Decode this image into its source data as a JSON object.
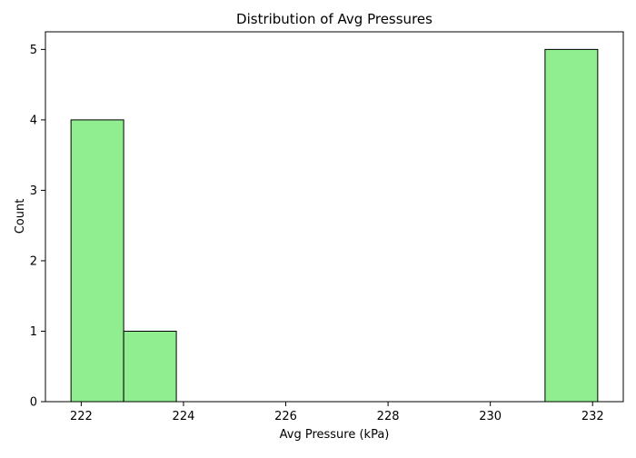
{
  "chart_data": {
    "type": "bar",
    "title": "Distribution of Avg Pressures",
    "xlabel": "Avg Pressure (kPa)",
    "ylabel": "Count",
    "bins": [
      {
        "start": 221.8,
        "end": 222.83,
        "count": 4
      },
      {
        "start": 222.83,
        "end": 223.86,
        "count": 1
      },
      {
        "start": 223.86,
        "end": 224.89,
        "count": 0
      },
      {
        "start": 224.89,
        "end": 225.92,
        "count": 0
      },
      {
        "start": 225.92,
        "end": 226.95,
        "count": 0
      },
      {
        "start": 226.95,
        "end": 227.98,
        "count": 0
      },
      {
        "start": 227.98,
        "end": 229.01,
        "count": 0
      },
      {
        "start": 229.01,
        "end": 230.04,
        "count": 0
      },
      {
        "start": 230.04,
        "end": 231.07,
        "count": 0
      },
      {
        "start": 231.07,
        "end": 232.1,
        "count": 5
      }
    ],
    "xlim": [
      221.3,
      232.6
    ],
    "ylim": [
      0,
      5.25
    ],
    "xticks": [
      222,
      224,
      226,
      228,
      230,
      232
    ],
    "yticks": [
      0,
      1,
      2,
      3,
      4,
      5
    ],
    "grid": false,
    "bar_color": "#90ee90",
    "edge_color": "#000000"
  }
}
